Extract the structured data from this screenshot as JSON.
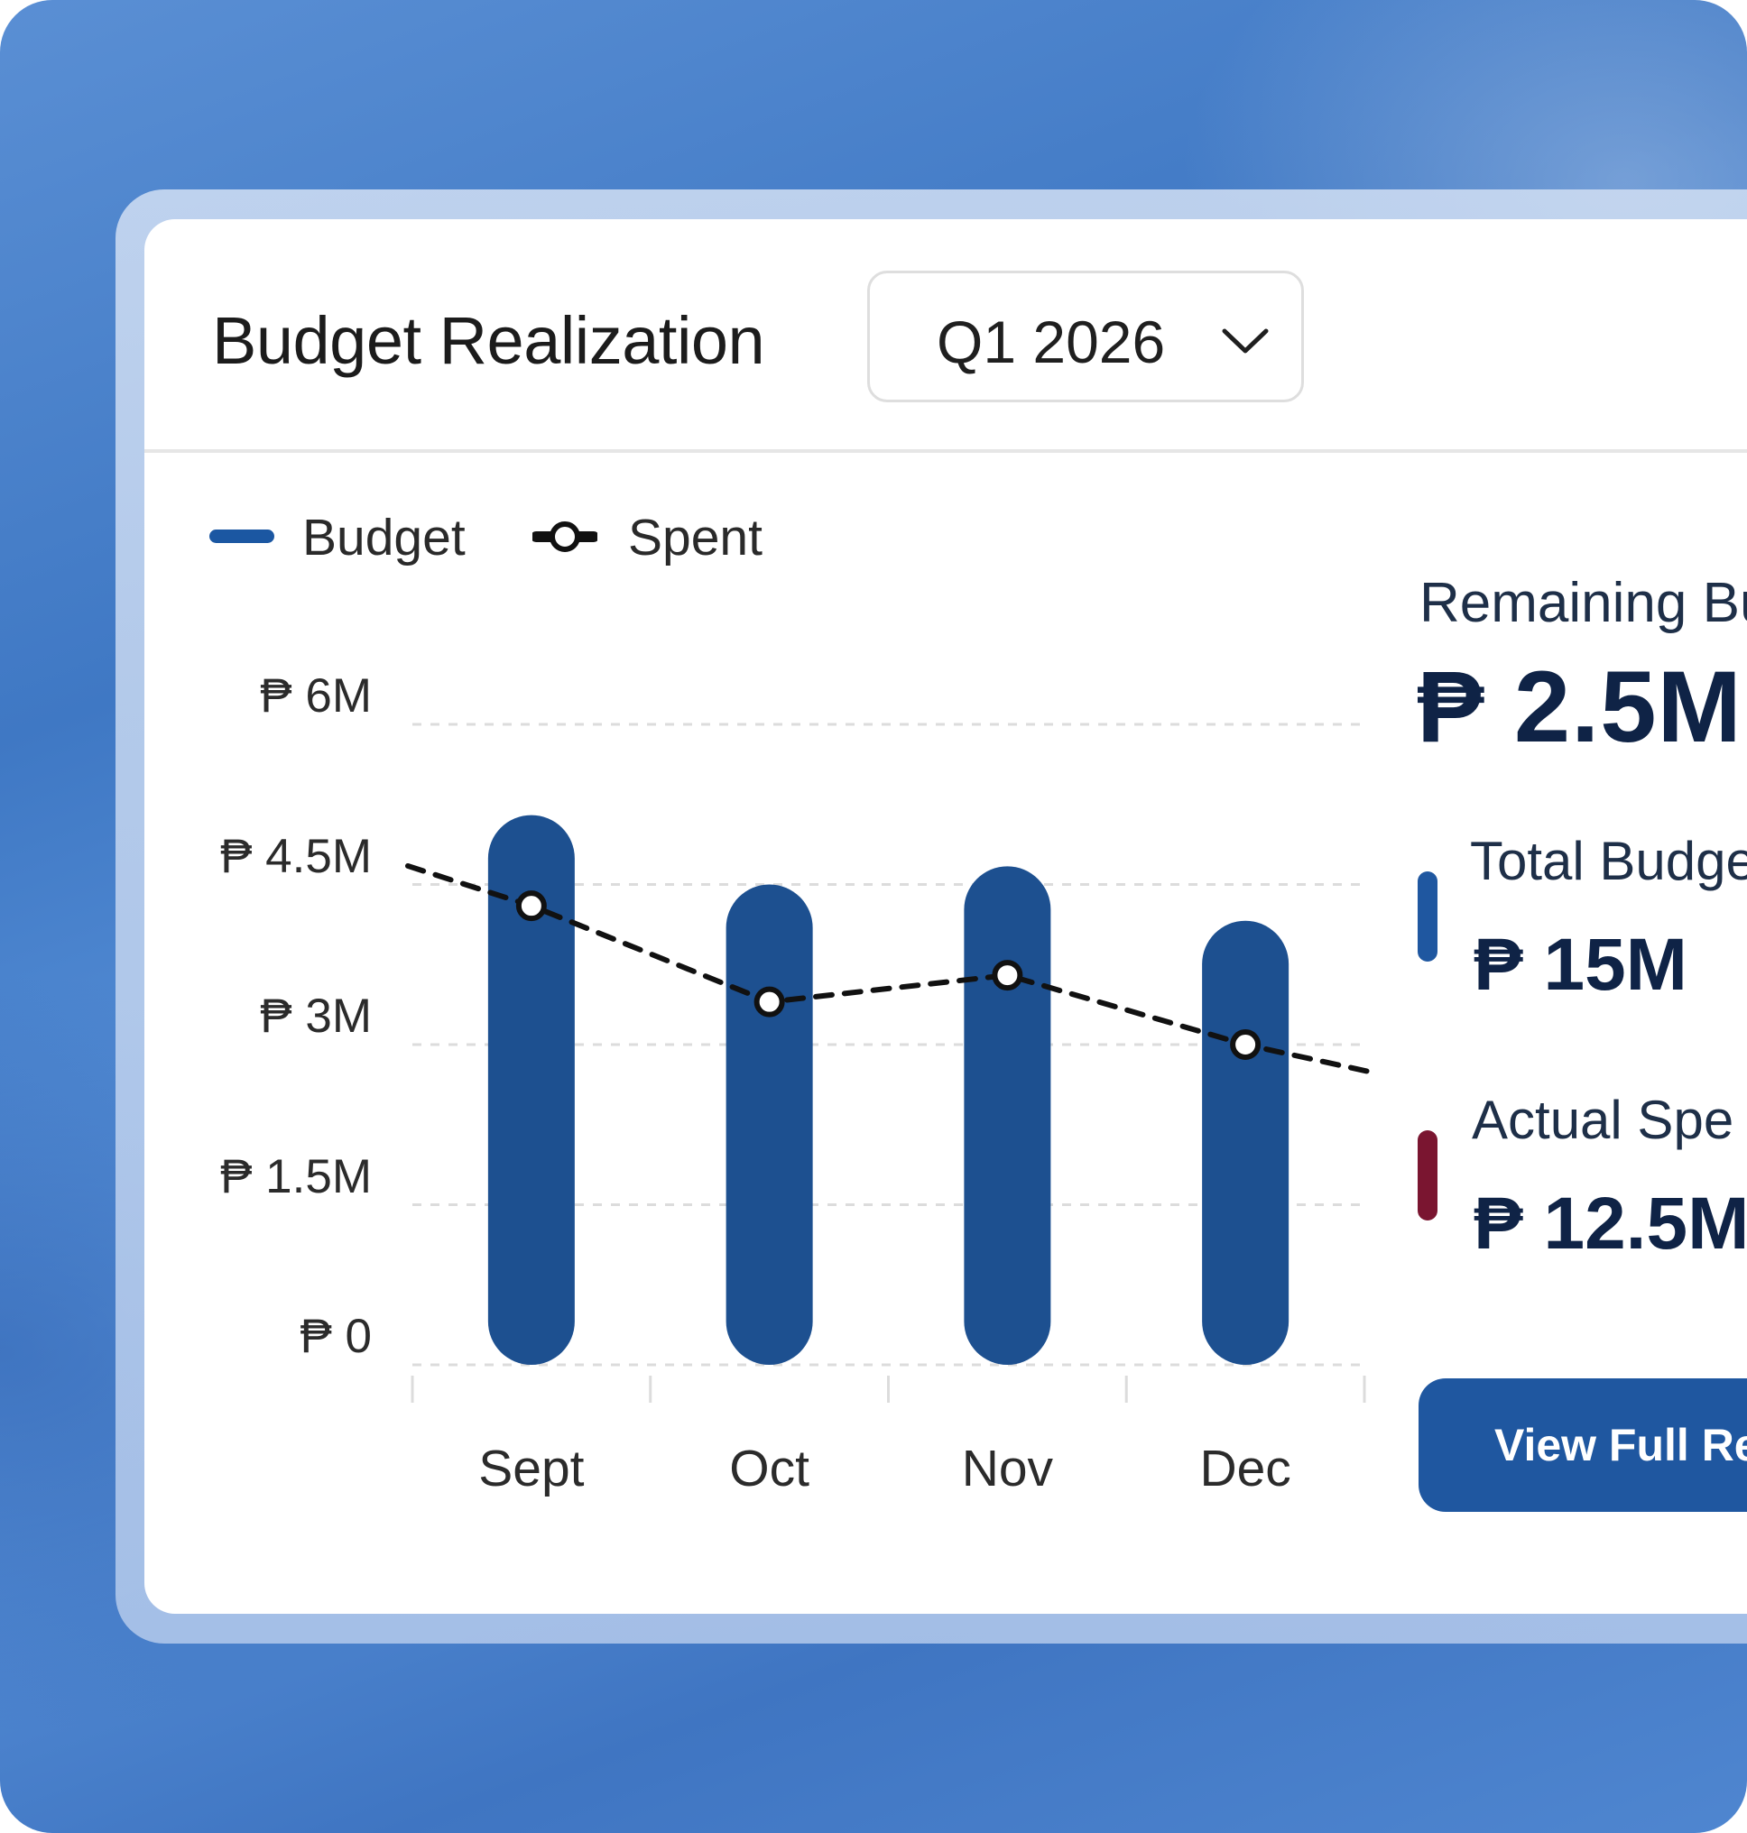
{
  "header": {
    "title": "Budget Realization",
    "period_selector": {
      "value": "Q1 2026"
    }
  },
  "legend": [
    {
      "label": "Budget"
    },
    {
      "label": "Spent"
    }
  ],
  "summary": {
    "remaining": {
      "label": "Remaining Bu",
      "value": "₱ 2.5M"
    },
    "total_budget": {
      "label": "Total Budge",
      "value": "₱ 15M",
      "color": "#1f57a0"
    },
    "actual_spent": {
      "label": "Actual Spe",
      "value": "₱ 12.5M",
      "color": "#7a1530"
    }
  },
  "cta": {
    "label": "View Full Re"
  },
  "colors": {
    "budget_bar": "#1d5090",
    "spent_line": "#111111",
    "button": "#1f57a0"
  },
  "chart_data": {
    "type": "bar",
    "categories": [
      "Sept",
      "Oct",
      "Nov",
      "Dec"
    ],
    "series": [
      {
        "name": "Budget",
        "type": "bar",
        "values": [
          5.15,
          4.5,
          4.67,
          4.16
        ]
      },
      {
        "name": "Spent",
        "type": "line",
        "style": "dashed",
        "values": [
          4.3,
          3.4,
          3.65,
          3.0
        ]
      }
    ],
    "y_ticks": [
      "₱ 6M",
      "₱ 4.5M",
      "₱ 3M",
      "₱ 1.5M",
      "₱ 0"
    ],
    "y_tick_values": [
      6,
      4.5,
      3,
      1.5,
      0
    ],
    "ylim": [
      0,
      6
    ],
    "grid": true,
    "legend_position": "top-left"
  }
}
